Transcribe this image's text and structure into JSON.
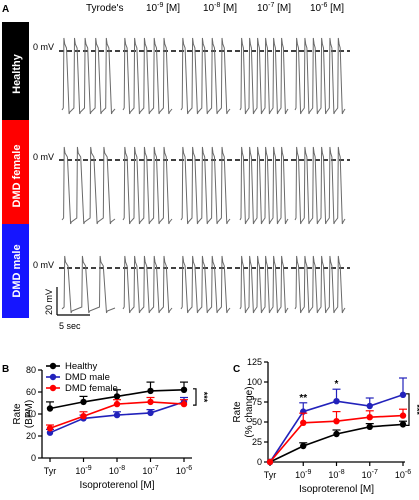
{
  "panel_a": {
    "letter": "A",
    "column_headers": [
      "Tyrode's",
      "10",
      "10",
      "10",
      "10"
    ],
    "column_exponents": [
      "",
      "-9",
      "-8",
      "-7",
      "-6"
    ],
    "column_units": [
      "",
      " [M]",
      " [M]",
      " [M]",
      " [M]"
    ],
    "rows": [
      {
        "label": "Healthy",
        "color": "#000000",
        "zero_label": "0 mV",
        "beats": [
          5,
          5,
          5,
          6,
          6
        ]
      },
      {
        "label": "DMD female",
        "color": "#ff0000",
        "zero_label": "0 mV",
        "beats": [
          4,
          5,
          5,
          6,
          6
        ]
      },
      {
        "label": "DMD male",
        "color": "#1515ff",
        "zero_label": "0 mV",
        "beats": [
          3,
          5,
          5,
          6,
          6
        ]
      }
    ],
    "scale_bar": {
      "voltage": "20 mV",
      "time": "5 sec"
    }
  },
  "chart_data": [
    {
      "type": "line",
      "letter": "B",
      "ylabel": "Rate\n(BPM)",
      "xlabel": "Isoproterenol [M]",
      "x_tick_labels": [
        "Tyr",
        "10",
        "10",
        "10",
        "10"
      ],
      "x_tick_exponents": [
        "",
        "-9",
        "-8",
        "-7",
        "-6"
      ],
      "ylim": [
        0,
        80
      ],
      "y_ticks": [
        0,
        20,
        40,
        60,
        80
      ],
      "legend": "top-left",
      "significance": "***",
      "series": [
        {
          "name": "Healthy",
          "color": "#000000",
          "values": [
            45,
            51,
            56,
            61,
            62
          ],
          "errors": [
            6,
            5,
            6,
            8,
            7
          ]
        },
        {
          "name": "DMD male",
          "color": "#2222bb",
          "values": [
            23,
            36,
            39,
            41,
            51
          ],
          "errors": [
            3,
            3,
            3,
            3,
            4
          ]
        },
        {
          "name": "DMD female",
          "color": "#ff0000",
          "values": [
            27,
            38,
            49,
            51,
            49
          ],
          "errors": [
            3,
            4,
            4,
            4,
            4
          ]
        }
      ]
    },
    {
      "type": "line",
      "letter": "C",
      "ylabel": "Rate\n(% change)",
      "xlabel": "Isoproterenol [M]",
      "x_tick_labels": [
        "Tyr",
        "10",
        "10",
        "10",
        "10"
      ],
      "x_tick_exponents": [
        "",
        "-9",
        "-8",
        "-7",
        "-6"
      ],
      "ylim": [
        0,
        125
      ],
      "y_ticks": [
        0,
        25,
        50,
        75,
        100,
        125
      ],
      "significance": "***",
      "point_marks": [
        "",
        "**",
        "*",
        "",
        ""
      ],
      "series": [
        {
          "name": "Healthy",
          "color": "#000000",
          "values": [
            0,
            20,
            35,
            44,
            47
          ],
          "errors": [
            0,
            4,
            5,
            4,
            4
          ]
        },
        {
          "name": "DMD male",
          "color": "#2222bb",
          "values": [
            0,
            63,
            76,
            70,
            84
          ],
          "errors": [
            0,
            11,
            15,
            10,
            21
          ]
        },
        {
          "name": "DMD female",
          "color": "#ff0000",
          "values": [
            0,
            49,
            51,
            56,
            58
          ],
          "errors": [
            0,
            12,
            12,
            8,
            8
          ]
        }
      ]
    }
  ]
}
